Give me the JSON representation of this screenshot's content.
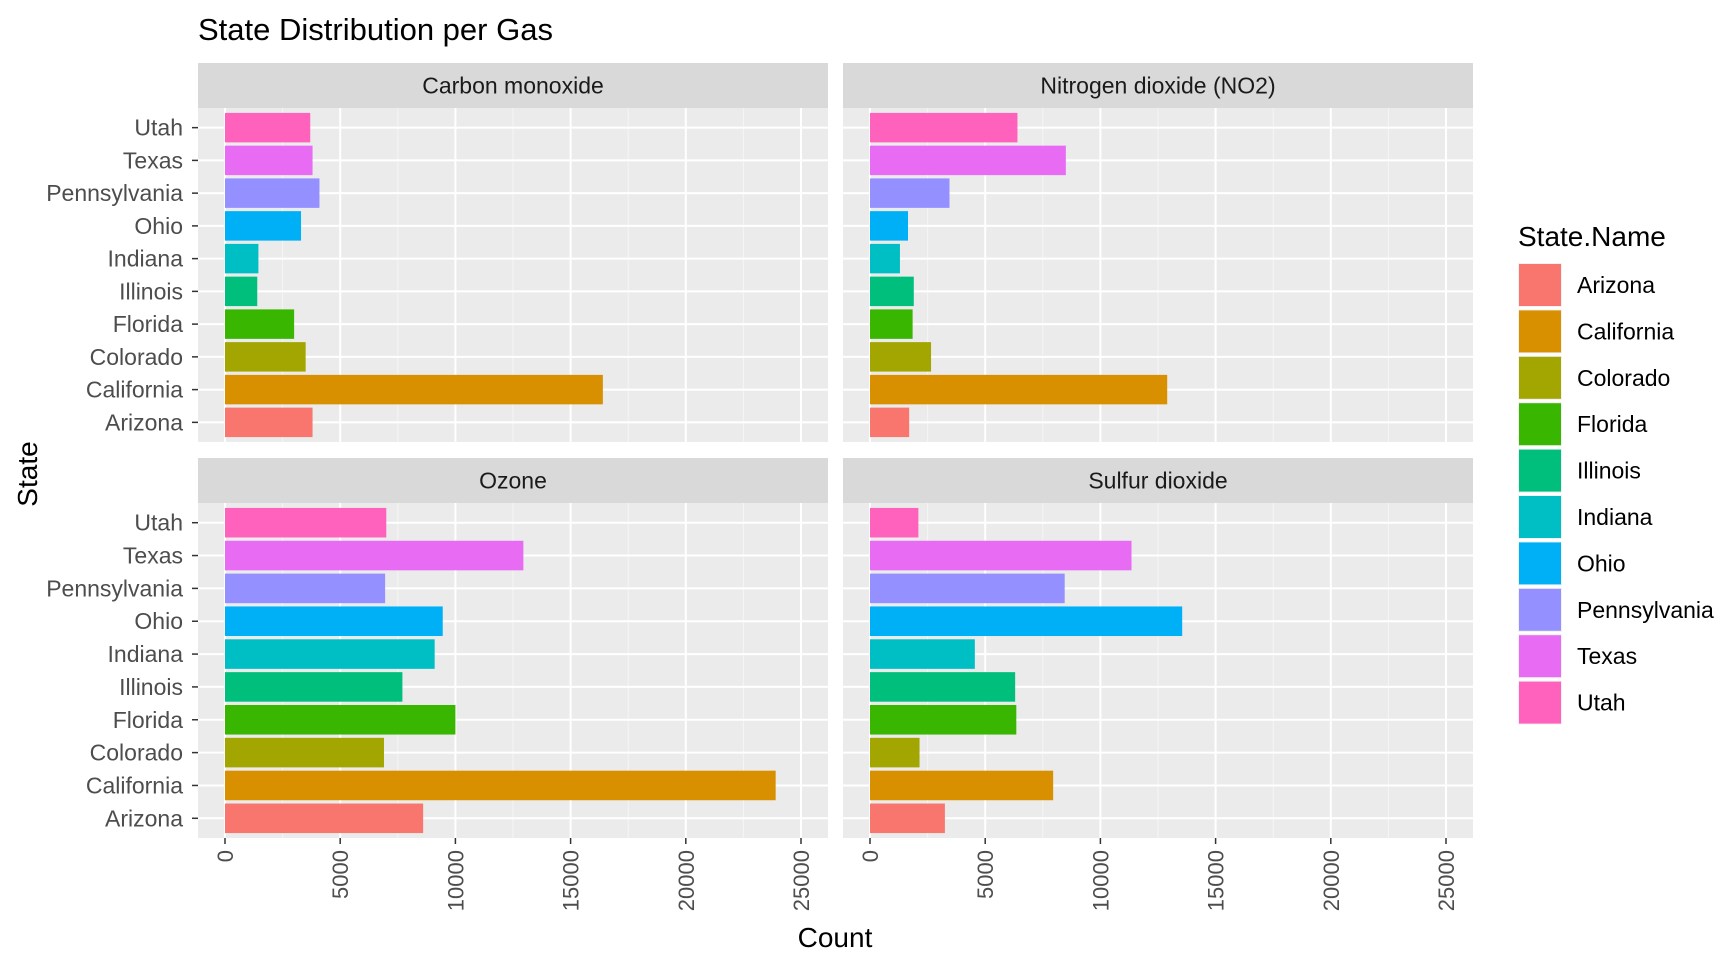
{
  "chart_data": {
    "type": "bar",
    "orientation": "horizontal",
    "title": "State Distribution per Gas",
    "xlabel": "Count",
    "ylabel": "State",
    "xlim": [
      0,
      25000
    ],
    "x_ticks": [
      0,
      5000,
      10000,
      15000,
      20000,
      25000
    ],
    "x_tick_labels": [
      "0",
      "5000",
      "10000",
      "15000",
      "20000",
      "25000"
    ],
    "grid": true,
    "legend": {
      "title": "State.Name",
      "position": "right"
    },
    "categories": [
      "Arizona",
      "California",
      "Colorado",
      "Florida",
      "Illinois",
      "Indiana",
      "Ohio",
      "Pennsylvania",
      "Texas",
      "Utah"
    ],
    "colors": [
      "#F8766D",
      "#D89000",
      "#A3A500",
      "#39B600",
      "#00BF7D",
      "#00BFC4",
      "#00B0F6",
      "#9590FF",
      "#E76BF3",
      "#FF62BC"
    ],
    "facets": [
      {
        "name": "Carbon monoxide",
        "values": [
          3800,
          16400,
          3500,
          3000,
          1400,
          1450,
          3300,
          4100,
          3800,
          3700
        ]
      },
      {
        "name": "Nitrogen dioxide (NO2)",
        "values": [
          1700,
          12900,
          2650,
          1850,
          1900,
          1300,
          1650,
          3450,
          8500,
          6400
        ]
      },
      {
        "name": "Ozone",
        "values": [
          8600,
          23900,
          6900,
          10000,
          7700,
          9100,
          9450,
          6950,
          12950,
          7000
        ]
      },
      {
        "name": "Sulfur dioxide",
        "values": [
          3250,
          7950,
          2150,
          6350,
          6300,
          4550,
          13550,
          8450,
          11350,
          2100
        ]
      }
    ]
  }
}
